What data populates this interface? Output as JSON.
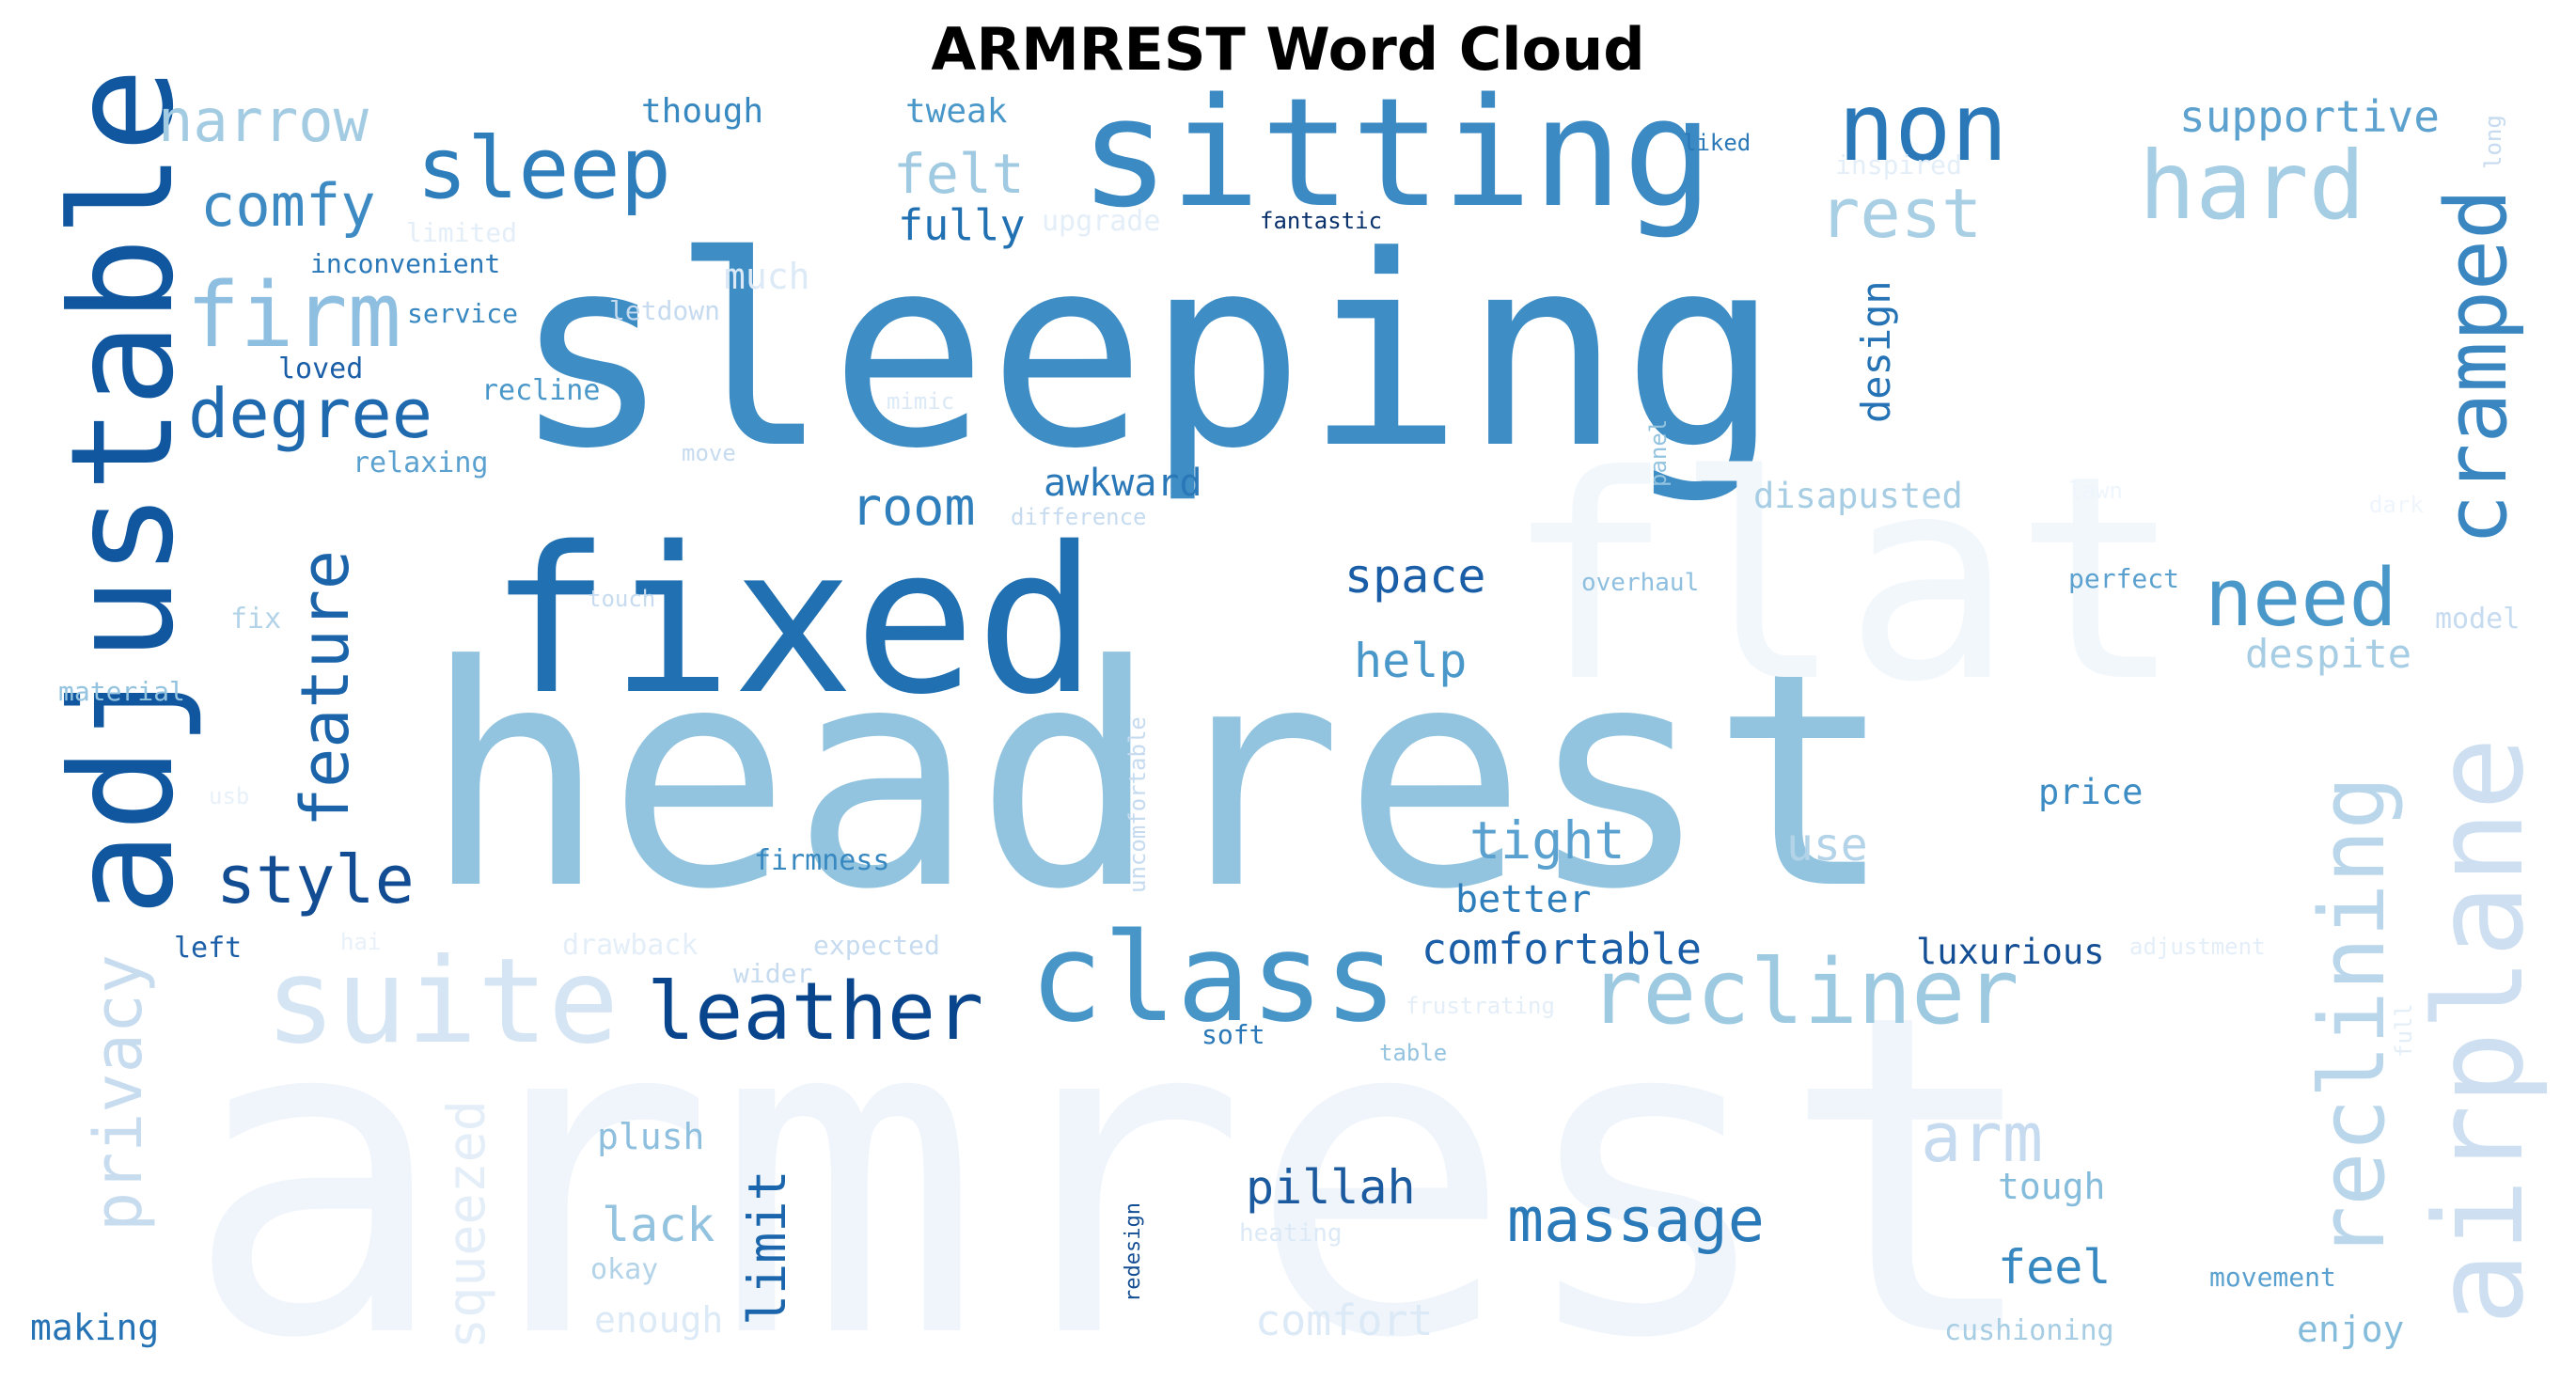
{
  "chart_data": {
    "type": "wordcloud",
    "title": "ARMREST Word Cloud",
    "colormap": "Blues",
    "words": [
      {
        "text": "armrest",
        "weight": 1.0,
        "color": "#eff5fb"
      },
      {
        "text": "headrest",
        "weight": 0.95,
        "color": "#93c4df"
      },
      {
        "text": "sleeping",
        "weight": 0.9,
        "color": "#3f8dc5"
      },
      {
        "text": "fixed",
        "weight": 0.7,
        "color": "#2070b2"
      },
      {
        "text": "flat",
        "weight": 0.6,
        "color": "#f2f7fc"
      },
      {
        "text": "sitting",
        "weight": 0.45,
        "color": "#3c8ac3"
      },
      {
        "text": "adjustable",
        "weight": 0.44,
        "color": "#1057a0"
      },
      {
        "text": "suite",
        "weight": 0.38,
        "color": "#d6e5f4"
      },
      {
        "text": "class",
        "weight": 0.4,
        "color": "#4896c8"
      },
      {
        "text": "airplane",
        "weight": 0.4,
        "color": "#cddff1"
      },
      {
        "text": "non",
        "weight": 0.3,
        "color": "#2a78b8"
      },
      {
        "text": "reclining",
        "weight": 0.3,
        "color": "#bad6eb"
      },
      {
        "text": "recliner",
        "weight": 0.28,
        "color": "#9ecae1"
      },
      {
        "text": "hard",
        "weight": 0.28,
        "color": "#a5cde3"
      },
      {
        "text": "cramped",
        "weight": 0.27,
        "color": "#3a86c1"
      },
      {
        "text": "sleep",
        "weight": 0.25,
        "color": "#2f7ebc"
      },
      {
        "text": "firm",
        "weight": 0.25,
        "color": "#8fbfe0"
      },
      {
        "text": "leather",
        "weight": 0.25,
        "color": "#08458d"
      },
      {
        "text": "feature",
        "weight": 0.24,
        "color": "#1b64aa"
      },
      {
        "text": "need",
        "weight": 0.24,
        "color": "#4a97c9"
      },
      {
        "text": "rest",
        "weight": 0.22,
        "color": "#a9cfe5"
      },
      {
        "text": "degree",
        "weight": 0.21,
        "color": "#1f69af"
      },
      {
        "text": "arm",
        "weight": 0.2,
        "color": "#c6dbef"
      },
      {
        "text": "privacy",
        "weight": 0.2,
        "color": "#c7dcef"
      },
      {
        "text": "style",
        "weight": 0.19,
        "color": "#124c92"
      },
      {
        "text": "massage",
        "weight": 0.19,
        "color": "#2a7ab9"
      },
      {
        "text": "narrow",
        "weight": 0.17,
        "color": "#a3cce3"
      },
      {
        "text": "comfy",
        "weight": 0.17,
        "color": "#3e8bc4"
      },
      {
        "text": "squeezed",
        "weight": 0.16,
        "color": "#e3eef8"
      },
      {
        "text": "felt",
        "weight": 0.15,
        "color": "#a0cae2"
      },
      {
        "text": "supportive",
        "weight": 0.14,
        "color": "#5da2cf"
      },
      {
        "text": "room",
        "weight": 0.15,
        "color": "#2f7fbc"
      },
      {
        "text": "limit",
        "weight": 0.15,
        "color": "#1a65ab"
      },
      {
        "text": "pillah",
        "weight": 0.14,
        "color": "#1b5a9e"
      },
      {
        "text": "space",
        "weight": 0.14,
        "color": "#195ea7"
      },
      {
        "text": "help",
        "weight": 0.14,
        "color": "#4a97c9"
      },
      {
        "text": "tight",
        "weight": 0.14,
        "color": "#5ba1cf"
      },
      {
        "text": "lack",
        "weight": 0.14,
        "color": "#93c3df"
      },
      {
        "text": "feel",
        "weight": 0.14,
        "color": "#3787c0"
      },
      {
        "text": "awkward",
        "weight": 0.12,
        "color": "#2a78b8"
      },
      {
        "text": "comfortable",
        "weight": 0.12,
        "color": "#1a5ea7"
      },
      {
        "text": "design",
        "weight": 0.12,
        "color": "#2573b5"
      },
      {
        "text": "despite",
        "weight": 0.12,
        "color": "#a6cde3"
      },
      {
        "text": "use",
        "weight": 0.12,
        "color": "#b3d3e8"
      },
      {
        "text": "better",
        "weight": 0.11,
        "color": "#2e7ebc"
      },
      {
        "text": "comfort",
        "weight": 0.12,
        "color": "#dce9f6"
      },
      {
        "text": "fully",
        "weight": 0.11,
        "color": "#2070b2"
      },
      {
        "text": "disapusted",
        "weight": 0.1,
        "color": "#a6cde3"
      },
      {
        "text": "luxurious",
        "weight": 0.1,
        "color": "#134e95"
      },
      {
        "text": "price",
        "weight": 0.1,
        "color": "#3d8dc4"
      },
      {
        "text": "plush",
        "weight": 0.1,
        "color": "#8ebfdf"
      },
      {
        "text": "tough",
        "weight": 0.1,
        "color": "#85bcdc"
      },
      {
        "text": "much",
        "weight": 0.1,
        "color": "#dce9f6"
      },
      {
        "text": "enough",
        "weight": 0.1,
        "color": "#dce9f6"
      },
      {
        "text": "enjoy",
        "weight": 0.1,
        "color": "#85bcdc"
      },
      {
        "text": "making",
        "weight": 0.1,
        "color": "#2573b5"
      },
      {
        "text": "though",
        "weight": 0.09,
        "color": "#3787c0"
      },
      {
        "text": "tweak",
        "weight": 0.09,
        "color": "#4a97c9"
      },
      {
        "text": "inconvenient",
        "weight": 0.08,
        "color": "#2a78b8"
      },
      {
        "text": "loved",
        "weight": 0.08,
        "color": "#1a5ea7"
      },
      {
        "text": "service",
        "weight": 0.08,
        "color": "#3787c0"
      },
      {
        "text": "recline",
        "weight": 0.08,
        "color": "#4a97c9"
      },
      {
        "text": "relaxing",
        "weight": 0.08,
        "color": "#5ba1cf"
      },
      {
        "text": "firmness",
        "weight": 0.08,
        "color": "#3787c0"
      },
      {
        "text": "left",
        "weight": 0.08,
        "color": "#1a5ea7"
      },
      {
        "text": "okay",
        "weight": 0.08,
        "color": "#b3d3e8"
      },
      {
        "text": "soft",
        "weight": 0.08,
        "color": "#2a78b8"
      },
      {
        "text": "perfect",
        "weight": 0.08,
        "color": "#5ba1cf"
      },
      {
        "text": "movement",
        "weight": 0.08,
        "color": "#5ba1cf"
      },
      {
        "text": "cushioning",
        "weight": 0.08,
        "color": "#a6cde3"
      },
      {
        "text": "overhaul",
        "weight": 0.07,
        "color": "#8ebfdf"
      },
      {
        "text": "material",
        "weight": 0.08,
        "color": "#93c3df"
      },
      {
        "text": "fix",
        "weight": 0.08,
        "color": "#b3d3e8"
      },
      {
        "text": "model",
        "weight": 0.08,
        "color": "#c6dbef"
      },
      {
        "text": "expected",
        "weight": 0.08,
        "color": "#c6dbef"
      },
      {
        "text": "wider",
        "weight": 0.08,
        "color": "#c6dbef"
      },
      {
        "text": "letdown",
        "weight": 0.08,
        "color": "#c6dbef"
      },
      {
        "text": "drawback",
        "weight": 0.08,
        "color": "#e3eef8"
      },
      {
        "text": "limited",
        "weight": 0.08,
        "color": "#e3eef8"
      },
      {
        "text": "upgrade",
        "weight": 0.08,
        "color": "#e3eef8"
      },
      {
        "text": "inspired",
        "weight": 0.08,
        "color": "#e3eef8"
      },
      {
        "text": "uncomfortable",
        "weight": 0.07,
        "color": "#c6dbef"
      },
      {
        "text": "panel",
        "weight": 0.07,
        "color": "#93c3df"
      },
      {
        "text": "touch",
        "weight": 0.07,
        "color": "#c6dbef"
      },
      {
        "text": "difference",
        "weight": 0.07,
        "color": "#c6dbef"
      },
      {
        "text": "frustrating",
        "weight": 0.07,
        "color": "#e3eef8"
      },
      {
        "text": "adjustment",
        "weight": 0.07,
        "color": "#e3eef8"
      },
      {
        "text": "fantastic",
        "weight": 0.07,
        "color": "#08306b"
      },
      {
        "text": "liked",
        "weight": 0.07,
        "color": "#2a78b8"
      },
      {
        "text": "long",
        "weight": 0.07,
        "color": "#c6dbef"
      },
      {
        "text": "move",
        "weight": 0.07,
        "color": "#c6dbef"
      },
      {
        "text": "mimic",
        "weight": 0.07,
        "color": "#dce9f6"
      },
      {
        "text": "usb",
        "weight": 0.06,
        "color": "#e8f1fa"
      },
      {
        "text": "hai",
        "weight": 0.06,
        "color": "#e8f1fa"
      },
      {
        "text": "dark",
        "weight": 0.06,
        "color": "#eef5fc"
      },
      {
        "text": "lawn",
        "weight": 0.06,
        "color": "#eef5fc"
      },
      {
        "text": "full",
        "weight": 0.07,
        "color": "#e3eef8"
      },
      {
        "text": "table",
        "weight": 0.07,
        "color": "#93c3df"
      },
      {
        "text": "heating",
        "weight": 0.07,
        "color": "#dce9f6"
      },
      {
        "text": "redesign",
        "weight": 0.06,
        "color": "#124c92"
      }
    ]
  }
}
